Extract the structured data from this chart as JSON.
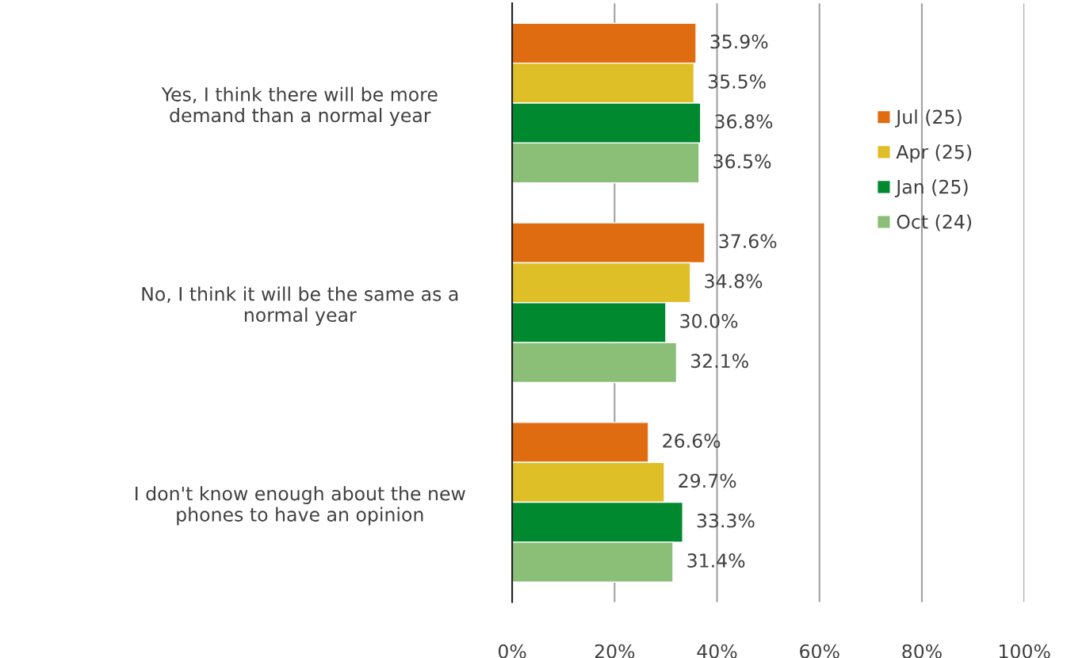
{
  "chart_data": {
    "type": "bar",
    "orientation": "horizontal",
    "categories": [
      "Yes, I think there will be more\ndemand than a normal year",
      "No, I think it will be the same as a\nnormal year",
      "I don't know enough about the new\nphones to have an opinion"
    ],
    "series": [
      {
        "name": "Jul (25)",
        "color": "#e06c12",
        "values": [
          35.9,
          37.6,
          26.6
        ],
        "value_labels": [
          "35.9%",
          "37.6%",
          "26.6%"
        ]
      },
      {
        "name": "Apr (25)",
        "color": "#dfbf28",
        "values": [
          35.5,
          34.8,
          29.7
        ],
        "value_labels": [
          "35.5%",
          "34.8%",
          "29.7%"
        ]
      },
      {
        "name": "Jan (25)",
        "color": "#00892f",
        "values": [
          36.8,
          30.0,
          33.3
        ],
        "value_labels": [
          "36.8%",
          "30.0%",
          "33.3%"
        ]
      },
      {
        "name": "Oct (24)",
        "color": "#8bbf78",
        "values": [
          36.5,
          32.1,
          31.4
        ],
        "value_labels": [
          "36.5%",
          "32.1%",
          "31.4%"
        ]
      }
    ],
    "xlim": [
      0,
      100
    ],
    "xticks": [
      {
        "value": 0,
        "label": "0%"
      },
      {
        "value": 20,
        "label": "20%"
      },
      {
        "value": 40,
        "label": "40%"
      },
      {
        "value": 60,
        "label": "60%"
      },
      {
        "value": 80,
        "label": "80%"
      },
      {
        "value": 100,
        "label": "100%"
      }
    ],
    "grid": "x",
    "legend": "right"
  }
}
